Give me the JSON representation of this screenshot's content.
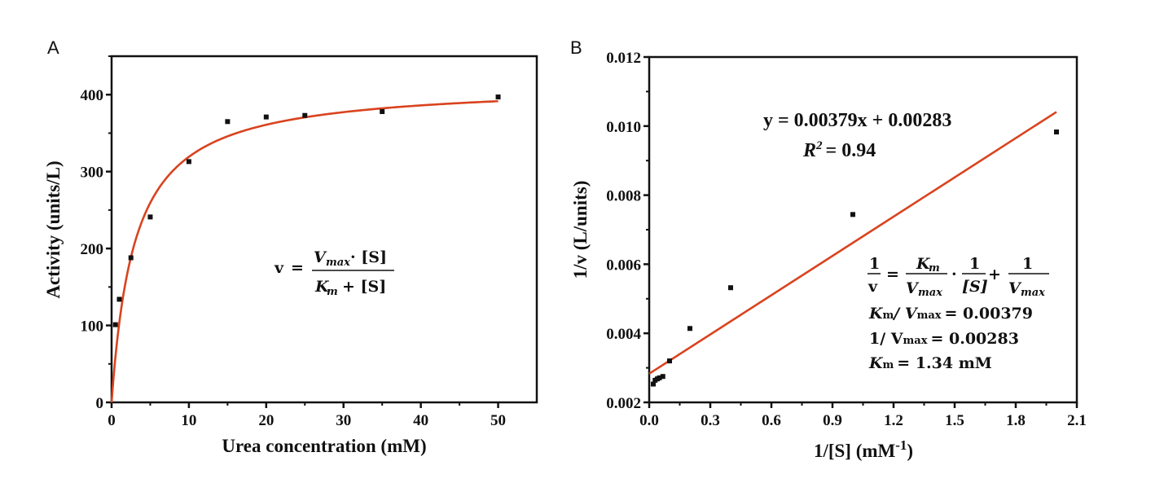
{
  "colors": {
    "fit": "#d9431e",
    "axis": "#111111",
    "point": "#111111"
  },
  "chart_data": [
    {
      "type": "scatter",
      "panel": "A",
      "xlabel": "Urea concentration (mM)",
      "ylabel": "Activity (units/L)",
      "xlim": [
        0,
        55
      ],
      "ylim": [
        0,
        450
      ],
      "xticks": [
        "0",
        "10",
        "20",
        "30",
        "40",
        "50"
      ],
      "yticks": [
        "0",
        "100",
        "200",
        "300",
        "400"
      ],
      "series": [
        {
          "name": "data",
          "x": [
            0.5,
            1,
            2.5,
            5,
            10,
            15,
            20,
            25,
            35,
            50
          ],
          "y": [
            101,
            134,
            188,
            241,
            313,
            365,
            371,
            373,
            378,
            397
          ]
        }
      ],
      "fit": {
        "model": "Michaelis-Menten",
        "vmax": 415,
        "km": 3.0,
        "xrange": [
          0,
          50
        ]
      },
      "equation": {
        "lhs": "v",
        "eq": "=",
        "num_var": "V",
        "num_sub": "max",
        "num_rest": "· [S]",
        "den_var": "K",
        "den_sub": "m",
        "den_rest": "+ [S]"
      }
    },
    {
      "type": "scatter",
      "panel": "B",
      "xlabel": "1/[S] (mM",
      "xlabel_sup": "-1",
      "xlabel_end": ")",
      "ylabel": "1/v (L/units)",
      "xlim": [
        0,
        2.1
      ],
      "ylim": [
        0.002,
        0.012
      ],
      "xticks": [
        "0.0",
        "0.3",
        "0.6",
        "0.9",
        "1.2",
        "1.5",
        "1.8",
        "2.1"
      ],
      "yticks": [
        "0.002",
        "0.004",
        "0.006",
        "0.008",
        "0.010",
        "0.012"
      ],
      "series": [
        {
          "name": "data",
          "x": [
            0.02,
            0.029,
            0.04,
            0.05,
            0.067,
            0.1,
            0.2,
            0.4,
            1.0,
            2.0
          ],
          "y": [
            0.00253,
            0.00264,
            0.00268,
            0.00271,
            0.00275,
            0.0032,
            0.00414,
            0.00532,
            0.00744,
            0.00983
          ]
        }
      ],
      "fit": {
        "slope": 0.00379,
        "intercept": 0.00283,
        "xrange": [
          0,
          2.0
        ]
      },
      "annotations": {
        "fit_equation": "y = 0.00379x + 0.00283",
        "r2_label": "R",
        "r2_sup": "2",
        "r2_value": "= 0.94",
        "lb_one": "1",
        "lb_v": "v",
        "lb_eq": "=",
        "lb_plus": "+",
        "lb_dot": "·",
        "lb_K": "K",
        "lb_m": "m",
        "lb_V": "V",
        "lb_max": "max",
        "lb_S": "[S]",
        "line1_a": "K",
        "line1_b": "m",
        "line1_c": "/ V",
        "line1_d": "max",
        "line1_e": "= 0.00379",
        "line2_a": "1/ V",
        "line2_b": "max",
        "line2_c": "= 0.00283",
        "line3_a": "K",
        "line3_b": "m",
        "line3_c": "= 1.34 mM"
      }
    }
  ]
}
